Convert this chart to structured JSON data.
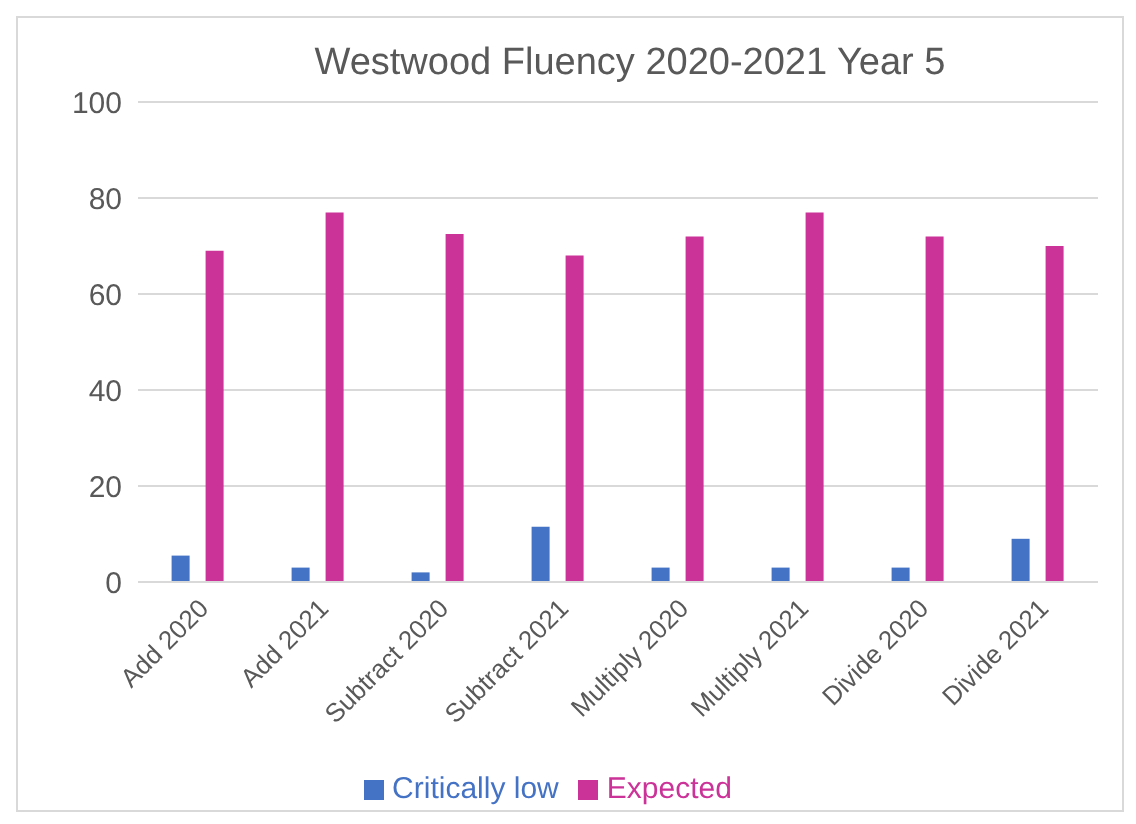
{
  "chart_data": {
    "type": "bar",
    "title": "Westwood Fluency 2020-2021 Year 5",
    "categories": [
      "Add 2020",
      "Add 2021",
      "Subtract 2020",
      "Subtract 2021",
      "Multiply 2020",
      "Multiply 2021",
      "Divide 2020",
      "Divide 2021"
    ],
    "series": [
      {
        "name": "Critically low",
        "color": "#4472c4",
        "values": [
          5.5,
          3,
          2,
          11.5,
          3,
          3,
          3,
          9
        ]
      },
      {
        "name": "Expected",
        "color": "#cc3399",
        "values": [
          69,
          77,
          72.5,
          68,
          72,
          77,
          72,
          70
        ]
      }
    ],
    "ylim": [
      0,
      100
    ],
    "yticks": [
      0,
      20,
      40,
      60,
      80,
      100
    ],
    "grid": "y",
    "legend": "bottom"
  }
}
